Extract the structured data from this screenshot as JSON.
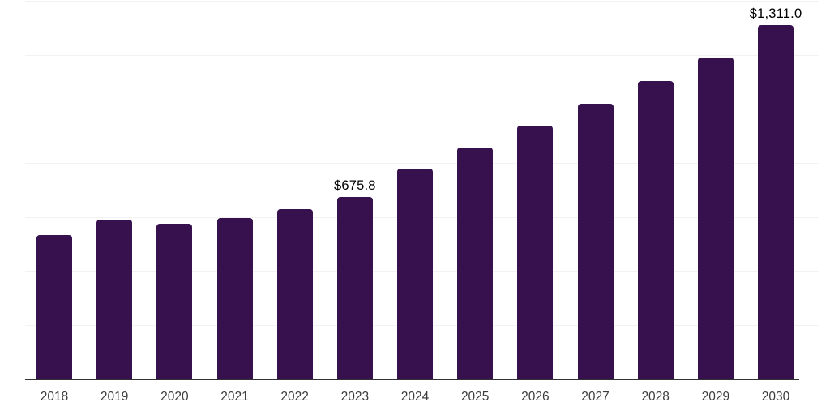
{
  "chart_data": {
    "type": "bar",
    "title": "",
    "xlabel": "",
    "ylabel": "",
    "categories": [
      "2018",
      "2019",
      "2020",
      "2021",
      "2022",
      "2023",
      "2024",
      "2025",
      "2026",
      "2027",
      "2028",
      "2029",
      "2030"
    ],
    "values": [
      533,
      592,
      577,
      598,
      631,
      675.8,
      780,
      858,
      940,
      1021,
      1105,
      1190,
      1311.0
    ],
    "data_labels": {
      "2023": "$675.8",
      "2030": "$1,311.0"
    },
    "ylim": [
      0,
      1400
    ],
    "gridline_step": 200,
    "grid": "horizontal-only, unlabeled y-axis",
    "legend": "none",
    "colors": {
      "bar": "#36114d",
      "axis": "#333333",
      "gridline": "#f2f2f2",
      "tick_label": "#3c3c3c",
      "data_label": "#000000"
    }
  }
}
